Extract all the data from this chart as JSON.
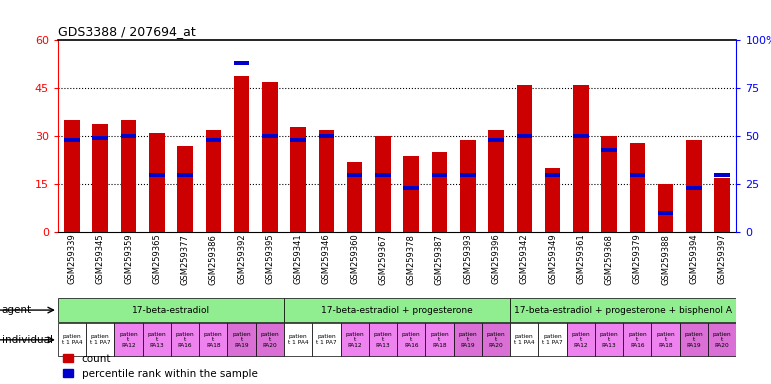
{
  "title": "GDS3388 / 207694_at",
  "gsm_ids": [
    "GSM259339",
    "GSM259345",
    "GSM259359",
    "GSM259365",
    "GSM259377",
    "GSM259386",
    "GSM259392",
    "GSM259395",
    "GSM259341",
    "GSM259346",
    "GSM259360",
    "GSM259367",
    "GSM259378",
    "GSM259387",
    "GSM259393",
    "GSM259396",
    "GSM259342",
    "GSM259349",
    "GSM259361",
    "GSM259368",
    "GSM259379",
    "GSM259388",
    "GSM259394",
    "GSM259397"
  ],
  "counts": [
    35,
    34,
    35,
    31,
    27,
    32,
    49,
    47,
    33,
    32,
    22,
    30,
    24,
    25,
    29,
    32,
    46,
    20,
    46,
    30,
    28,
    15,
    29,
    17
  ],
  "percentiles": [
    48,
    49,
    50,
    30,
    30,
    48,
    88,
    50,
    48,
    50,
    30,
    30,
    23,
    30,
    30,
    48,
    50,
    30,
    50,
    43,
    30,
    10,
    23,
    30
  ],
  "bar_color": "#cc0000",
  "percentile_color": "#0000cc",
  "ylim_left": [
    0,
    60
  ],
  "ylim_right": [
    0,
    100
  ],
  "yticks_left": [
    0,
    15,
    30,
    45,
    60
  ],
  "ytick_labels_left": [
    "0",
    "15",
    "30",
    "45",
    "60"
  ],
  "yticks_right": [
    0,
    25,
    50,
    75,
    100
  ],
  "ytick_labels_right": [
    "0",
    "25",
    "50",
    "75",
    "100%"
  ],
  "agent_configs": [
    {
      "label": "17-beta-estradiol",
      "start": 0,
      "end": 8
    },
    {
      "label": "17-beta-estradiol + progesterone",
      "start": 8,
      "end": 16
    },
    {
      "label": "17-beta-estradiol + progesterone + bisphenol A",
      "start": 16,
      "end": 24
    }
  ],
  "agent_color": "#90ee90",
  "indiv_labels_cycle": [
    "patien\nt 1 PA4",
    "patien\nt 1 PA7",
    "patien\nt\nPA12",
    "patien\nt\nPA13",
    "patien\nt\nPA16",
    "patien\nt\nPA18",
    "patien\nt\nPA19",
    "patien\nt\nPA20"
  ],
  "indiv_colors_cycle": [
    "#ffffff",
    "#ffffff",
    "#ee82ee",
    "#ee82ee",
    "#ee82ee",
    "#ee82ee",
    "#da70d6",
    "#da70d6"
  ],
  "bg_color": "#ffffff",
  "bar_width": 0.55
}
